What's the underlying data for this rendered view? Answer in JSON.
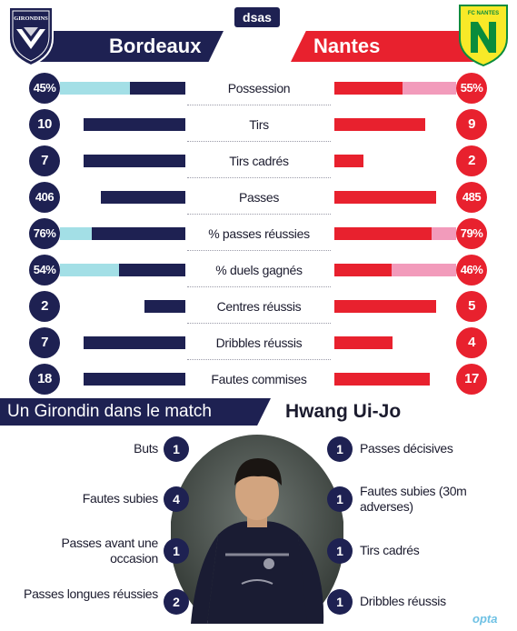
{
  "brand": "dsas",
  "source": "opta",
  "colors": {
    "home": "#1e2152",
    "away": "#e8212e",
    "home_light": "#a3dfe6",
    "away_light": "#f29bbb",
    "nantes_yellow": "#f8e928",
    "nantes_green": "#0a8c3c"
  },
  "logos": {
    "home": "bordeaux-crest-icon",
    "home_text": "GIRONDINS",
    "away": "nantes-crest-icon",
    "away_text": "FC NANTES"
  },
  "teams": {
    "home": "Bordeaux",
    "away": "Nantes"
  },
  "chart_data": {
    "type": "bar",
    "orientation": "diverging-horizontal",
    "series": [
      {
        "name": "Bordeaux"
      },
      {
        "name": "Nantes"
      }
    ],
    "rows": [
      {
        "label": "Possession",
        "home": "45%",
        "away": "55%",
        "home_value": 45,
        "away_value": 55,
        "percent": true
      },
      {
        "label": "Tirs",
        "home": "10",
        "away": "9",
        "home_value": 10,
        "away_value": 9,
        "percent": false
      },
      {
        "label": "Tirs cadrés",
        "home": "7",
        "away": "2",
        "home_value": 7,
        "away_value": 2,
        "percent": false
      },
      {
        "label": "Passes",
        "home": "406",
        "away": "485",
        "home_value": 406,
        "away_value": 485,
        "percent": false
      },
      {
        "label": "% passes réussies",
        "home": "76%",
        "away": "79%",
        "home_value": 76,
        "away_value": 79,
        "percent": true
      },
      {
        "label": "% duels gagnés",
        "home": "54%",
        "away": "46%",
        "home_value": 54,
        "away_value": 46,
        "percent": true
      },
      {
        "label": "Centres réussis",
        "home": "2",
        "away": "5",
        "home_value": 2,
        "away_value": 5,
        "percent": false
      },
      {
        "label": "Dribbles réussis",
        "home": "7",
        "away": "4",
        "home_value": 7,
        "away_value": 4,
        "percent": false
      },
      {
        "label": "Fautes commises",
        "home": "18",
        "away": "17",
        "home_value": 18,
        "away_value": 17,
        "percent": false
      }
    ]
  },
  "player_section": {
    "title": "Un Girondin dans le match",
    "player_name": "Hwang Ui-Jo",
    "photo": "player-photo",
    "left_stats": [
      {
        "label": "Buts",
        "value": "1"
      },
      {
        "label": "Fautes subies",
        "value": "4"
      },
      {
        "label": "Passes avant une occasion",
        "value": "1"
      },
      {
        "label": "Passes longues réussies",
        "value": "2"
      }
    ],
    "right_stats": [
      {
        "label": "Passes décisives",
        "value": "1"
      },
      {
        "label": "Fautes subies (30m adverses)",
        "value": "1"
      },
      {
        "label": "Tirs cadrés",
        "value": "1"
      },
      {
        "label": "Dribbles réussis",
        "value": "1"
      }
    ]
  }
}
